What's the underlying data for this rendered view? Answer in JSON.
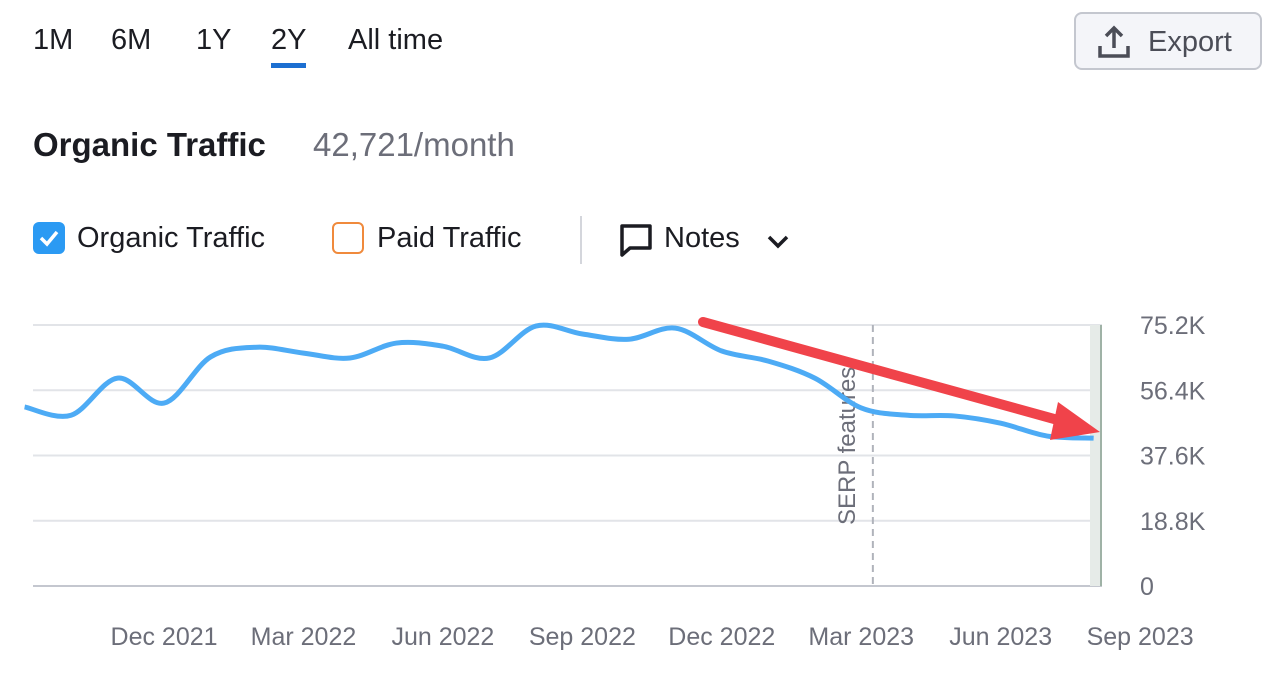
{
  "tabs": {
    "items": [
      "1M",
      "6M",
      "1Y",
      "2Y",
      "All time"
    ],
    "active": 3
  },
  "export": "Export",
  "header": {
    "title": "Organic Traffic",
    "value": "42,721/month"
  },
  "legend": {
    "items": [
      {
        "label": "Organic Traffic",
        "checked": true
      },
      {
        "label": "Paid Traffic",
        "checked": false
      }
    ],
    "notes": "Notes"
  },
  "chart_data": {
    "type": "line",
    "categories": [
      null,
      null,
      null,
      "Dec 2021",
      null,
      null,
      "Mar 2022",
      null,
      null,
      "Jun 2022",
      null,
      null,
      "Sep 2022",
      null,
      null,
      "Dec 2022",
      null,
      null,
      "Mar 2023",
      null,
      null,
      "Jun 2023",
      null,
      null,
      "Sep 2023"
    ],
    "series": [
      {
        "name": "Organic Traffic",
        "color": "#4dabf5",
        "values": [
          51600,
          49200,
          59900,
          52700,
          66000,
          68800,
          67100,
          65700,
          70000,
          69100,
          65700,
          74900,
          72600,
          71100,
          74300,
          67700,
          64800,
          59900,
          51300,
          49200,
          49000,
          46900,
          43200,
          42600,
          null
        ]
      }
    ],
    "ylim": [
      0,
      75200
    ],
    "yticks": [
      0,
      {
        "value": 18800,
        "label": "18.8K"
      },
      {
        "value": 37600,
        "label": "37.6K"
      },
      {
        "value": 56400,
        "label": "56.4K"
      },
      {
        "value": 75200,
        "label": "75.2K"
      }
    ],
    "grid": true,
    "annotations": [
      {
        "label": "SERP features"
      }
    ]
  }
}
